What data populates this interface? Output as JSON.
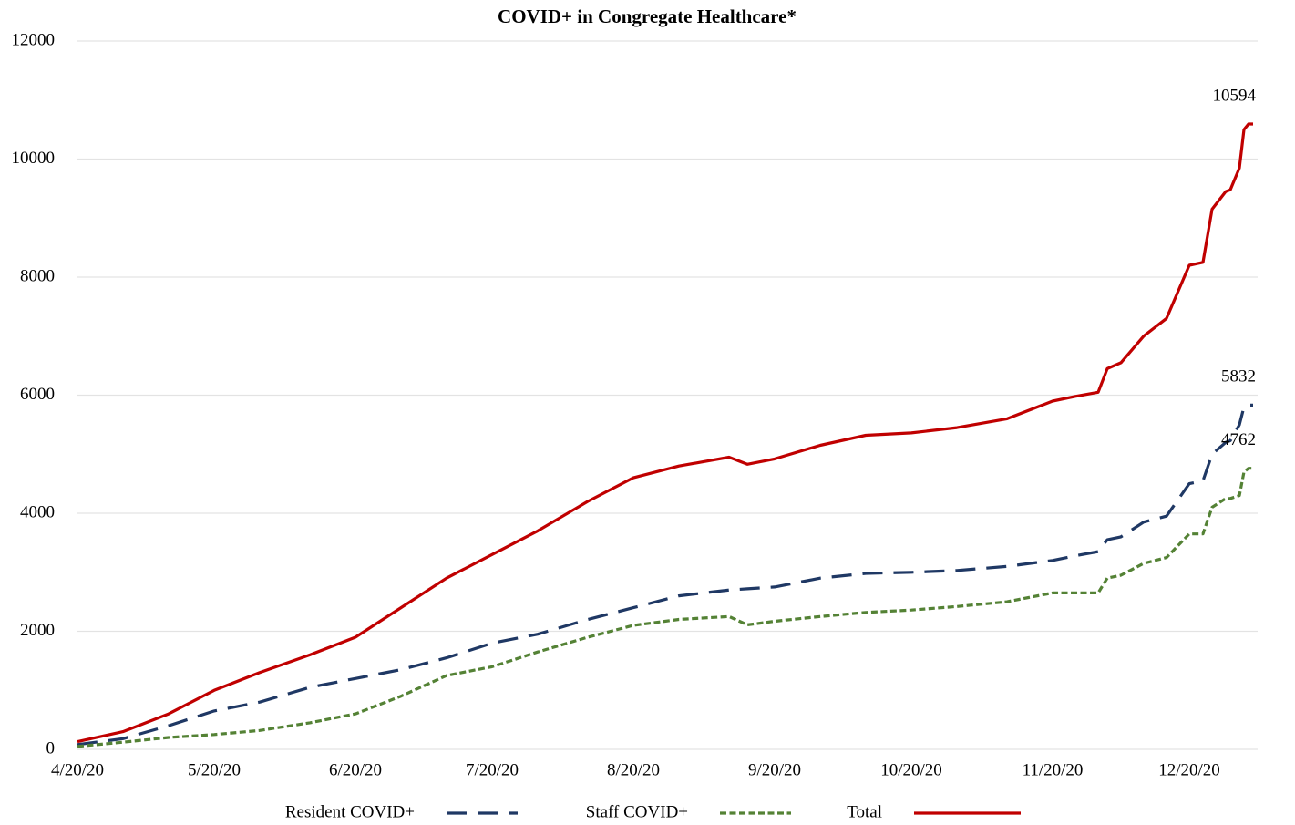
{
  "chart_data": {
    "type": "line",
    "title": "COVID+ in Congregate Healthcare*",
    "x": [
      "4/20/20",
      "4/30/20",
      "5/10/20",
      "5/20/20",
      "5/30/20",
      "6/10/20",
      "6/20/20",
      "6/30/20",
      "7/10/20",
      "7/20/20",
      "7/30/20",
      "8/10/20",
      "8/20/20",
      "8/30/20",
      "9/10/20",
      "9/14/20",
      "9/20/20",
      "9/30/20",
      "10/10/20",
      "10/20/20",
      "10/30/20",
      "11/10/20",
      "11/20/20",
      "11/25/20",
      "11/30/20",
      "12/2/20",
      "12/5/20",
      "12/10/20",
      "12/15/20",
      "12/20/20",
      "12/23/20",
      "12/25/20",
      "12/28/20",
      "12/29/20",
      "12/31/20",
      "1/1/21",
      "1/2/21",
      "1/3/21"
    ],
    "series": [
      {
        "name": "Resident COVID+",
        "color": "#1f3864",
        "line_style": "long-dash",
        "values": [
          80,
          180,
          400,
          650,
          800,
          1050,
          1200,
          1350,
          1550,
          1800,
          1950,
          2200,
          2400,
          2600,
          2700,
          2720,
          2750,
          2900,
          2980,
          3000,
          3030,
          3100,
          3200,
          3280,
          3350,
          3550,
          3600,
          3850,
          3950,
          4500,
          4550,
          5000,
          5200,
          5230,
          5500,
          5800,
          5832,
          5832
        ]
      },
      {
        "name": "Staff COVID+",
        "color": "#548235",
        "line_style": "short-dash",
        "values": [
          50,
          120,
          200,
          250,
          320,
          450,
          600,
          900,
          1250,
          1400,
          1650,
          1900,
          2100,
          2200,
          2250,
          2110,
          2170,
          2250,
          2320,
          2360,
          2420,
          2500,
          2650,
          2650,
          2650,
          2900,
          2950,
          3150,
          3250,
          3650,
          3650,
          4100,
          4250,
          4250,
          4300,
          4700,
          4762,
          4762
        ]
      },
      {
        "name": "Total",
        "color": "#c00000",
        "line_style": "solid",
        "values": [
          130,
          300,
          600,
          1000,
          1300,
          1600,
          1900,
          2400,
          2900,
          3300,
          3700,
          4200,
          4600,
          4800,
          4950,
          4830,
          4920,
          5150,
          5320,
          5360,
          5450,
          5600,
          5900,
          5980,
          6050,
          6450,
          6550,
          7000,
          7300,
          8200,
          8250,
          9150,
          9450,
          9480,
          9850,
          10500,
          10594,
          10594
        ]
      }
    ],
    "xlim": [
      "4/20/20",
      "1/4/21"
    ],
    "xticks": [
      "4/20/20",
      "5/20/20",
      "6/20/20",
      "7/20/20",
      "8/20/20",
      "9/20/20",
      "10/20/20",
      "11/20/20",
      "12/20/20"
    ],
    "ylim": [
      0,
      12000
    ],
    "yticks": [
      0,
      2000,
      4000,
      6000,
      8000,
      10000,
      12000
    ],
    "grid": true,
    "legend": "bottom"
  }
}
